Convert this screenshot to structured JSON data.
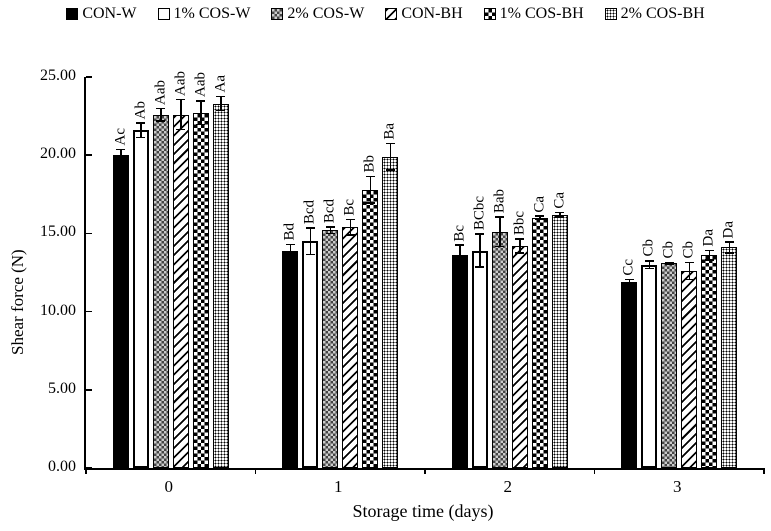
{
  "chart_data": {
    "type": "bar",
    "title": "",
    "xlabel": "Storage time (days)",
    "ylabel": "Shear force (N)",
    "ylim": [
      0,
      25
    ],
    "yticks": [
      "0.00",
      "5.00",
      "10.00",
      "15.00",
      "20.00",
      "25.00"
    ],
    "categories": [
      "0",
      "1",
      "2",
      "3"
    ],
    "grid": false,
    "legend_position": "top",
    "colors": {
      "axis": "#000000",
      "bar_border": "#000000",
      "background": "#ffffff"
    },
    "series": [
      {
        "name": "CON-W",
        "pattern": "solid-black",
        "values": [
          20.0,
          13.9,
          13.6,
          11.9
        ],
        "errors": [
          0.4,
          0.45,
          0.7,
          0.2
        ],
        "labels": [
          "Ac",
          "Bd",
          "Bc",
          "Cc"
        ]
      },
      {
        "name": "1% COS-W",
        "pattern": "white",
        "values": [
          21.6,
          14.5,
          13.9,
          13.0
        ],
        "errors": [
          0.5,
          0.9,
          1.1,
          0.3
        ],
        "labels": [
          "Ab",
          "Bcd",
          "BCbc",
          "Cb"
        ]
      },
      {
        "name": "2% COS-W",
        "pattern": "gray-check",
        "values": [
          22.6,
          15.2,
          15.1,
          13.1
        ],
        "errors": [
          0.45,
          0.25,
          1.0,
          0.1
        ],
        "labels": [
          "Aab",
          "Bcd",
          "Bab",
          "Cb"
        ]
      },
      {
        "name": "CON-BH",
        "pattern": "diagonal-stripes",
        "values": [
          22.6,
          15.4,
          14.2,
          12.6
        ],
        "errors": [
          1.0,
          0.55,
          0.5,
          0.6
        ],
        "labels": [
          "Aab",
          "Bc",
          "Bbc",
          "Cb"
        ]
      },
      {
        "name": "1% COS-BH",
        "pattern": "black-square-dots",
        "values": [
          22.7,
          17.8,
          16.0,
          13.6
        ],
        "errors": [
          0.8,
          0.9,
          0.15,
          0.35
        ],
        "labels": [
          "Aab",
          "Bb",
          "Ca",
          "Da"
        ]
      },
      {
        "name": "2% COS-BH",
        "pattern": "fine-dots",
        "values": [
          23.3,
          19.9,
          16.2,
          14.1
        ],
        "errors": [
          0.5,
          0.9,
          0.2,
          0.4
        ],
        "labels": [
          "Aa",
          "Ba",
          "Ca",
          "Da"
        ]
      }
    ]
  }
}
